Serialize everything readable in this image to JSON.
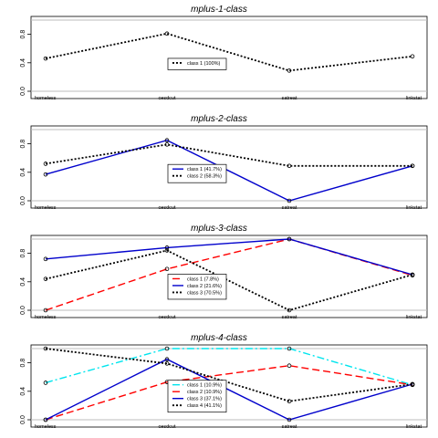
{
  "chart_data": [
    {
      "type": "line",
      "title": "mplus-1-class",
      "categories": [
        "homeless",
        "cesdcut",
        "satreat",
        "linkstat"
      ],
      "ylim": [
        0,
        1
      ],
      "yticks": [
        "0.0",
        "0.4",
        "0.8"
      ],
      "legend_position": "center",
      "series": [
        {
          "name": "class 1 (100%)",
          "values": [
            0.46,
            0.81,
            0.29,
            0.49
          ],
          "color": "#000000",
          "style": "dotted"
        }
      ]
    },
    {
      "type": "line",
      "title": "mplus-2-class",
      "categories": [
        "homeless",
        "cesdcut",
        "satreat",
        "linkstat"
      ],
      "ylim": [
        0,
        1
      ],
      "yticks": [
        "0.0",
        "0.4",
        "0.8"
      ],
      "legend_position": "center",
      "series": [
        {
          "name": "class 1 (41.7%)",
          "values": [
            0.37,
            0.85,
            0.0,
            0.49
          ],
          "color": "#0000cc",
          "style": "solid"
        },
        {
          "name": "class 2 (58.3%)",
          "values": [
            0.52,
            0.79,
            0.49,
            0.49
          ],
          "color": "#000000",
          "style": "dotted"
        }
      ]
    },
    {
      "type": "line",
      "title": "mplus-3-class",
      "categories": [
        "homeless",
        "cesdcut",
        "satreat",
        "linkstat"
      ],
      "ylim": [
        0,
        1
      ],
      "yticks": [
        "0.0",
        "0.4",
        "0.8"
      ],
      "legend_position": "center",
      "series": [
        {
          "name": "class 1 (7.8%)",
          "values": [
            0.0,
            0.58,
            1.0,
            0.49
          ],
          "color": "#ff0000",
          "style": "dashed"
        },
        {
          "name": "class 2 (21.6%)",
          "values": [
            0.72,
            0.88,
            1.0,
            0.5
          ],
          "color": "#0000cc",
          "style": "solid"
        },
        {
          "name": "class 3 (70.5%)",
          "values": [
            0.44,
            0.84,
            0.0,
            0.5
          ],
          "color": "#000000",
          "style": "dotted"
        }
      ]
    },
    {
      "type": "line",
      "title": "mplus-4-class",
      "categories": [
        "homeless",
        "cesdcut",
        "satreat",
        "linkstat"
      ],
      "ylim": [
        0,
        1
      ],
      "yticks": [
        "0.0",
        "0.4",
        "0.8"
      ],
      "legend_position": "center",
      "series": [
        {
          "name": "class 1 (10.9%)",
          "values": [
            0.52,
            1.0,
            1.0,
            0.49
          ],
          "color": "#00e5ee",
          "style": "dashdot"
        },
        {
          "name": "class 2 (10.9%)",
          "values": [
            0.0,
            0.53,
            0.76,
            0.49
          ],
          "color": "#ff0000",
          "style": "dashed"
        },
        {
          "name": "class 3 (37.1%)",
          "values": [
            0.0,
            0.85,
            0.0,
            0.5
          ],
          "color": "#0000cc",
          "style": "solid"
        },
        {
          "name": "class 4 (41.1%)",
          "values": [
            1.0,
            0.79,
            0.26,
            0.5
          ],
          "color": "#000000",
          "style": "dotted"
        }
      ]
    }
  ]
}
